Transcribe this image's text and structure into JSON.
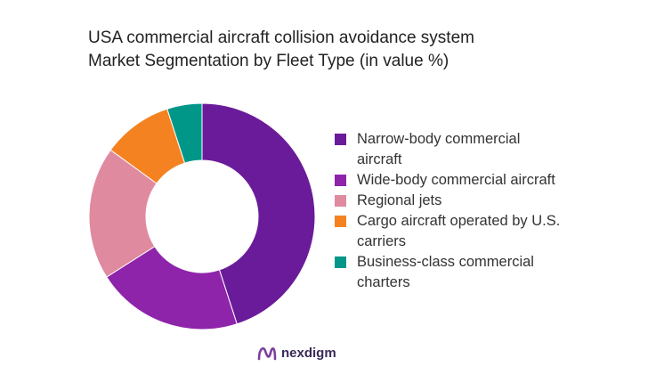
{
  "title_lines": [
    "USA commercial aircraft collision avoidance system",
    "Market Segmentation by Fleet Type (in value %)"
  ],
  "brand": {
    "name": "nexdigm",
    "logo_icon": "nexdigm-logo-icon"
  },
  "chart_data": {
    "type": "pie",
    "variant": "donut",
    "title": "USA commercial aircraft collision avoidance system Market Segmentation by Fleet Type (in value %)",
    "legend_position": "right",
    "categories": [
      "Narrow-body commercial aircraft",
      "Wide-body commercial aircraft",
      "Regional jets",
      "Cargo aircraft operated by U.S. carriers",
      "Business-class commercial charters"
    ],
    "values": [
      45,
      21,
      19,
      10,
      5
    ],
    "colors": [
      "#6a1b9a",
      "#8e24aa",
      "#e08aa0",
      "#f58220",
      "#009688"
    ]
  }
}
